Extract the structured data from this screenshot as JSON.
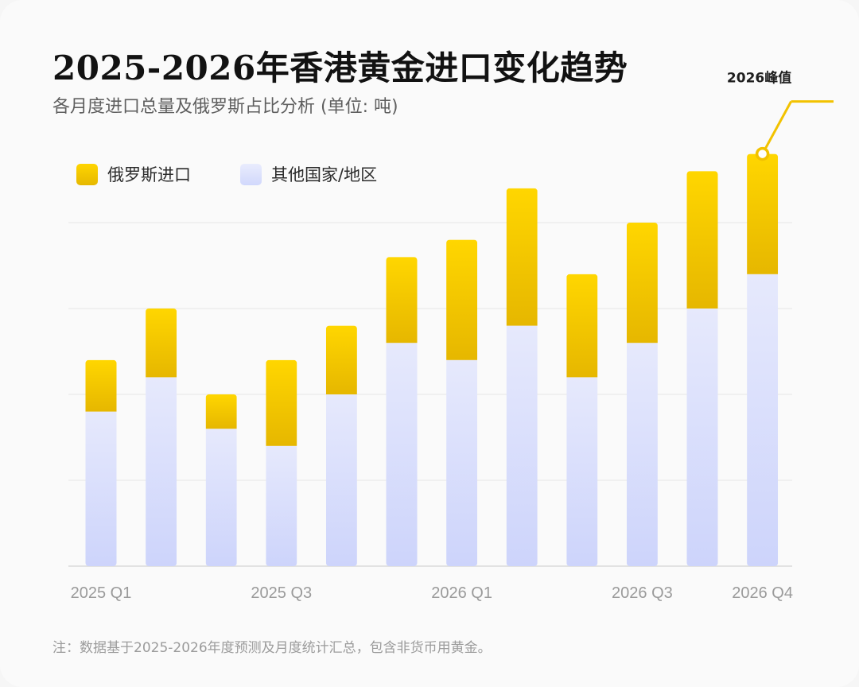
{
  "title": "2025-2026年香港黄金进口变化趋势",
  "subtitle": "各月度进口总量及俄罗斯占比分析 (单位: 吨)",
  "legend": {
    "russia": "俄罗斯进口",
    "other": "其他国家/地区"
  },
  "callout": "2026峰值",
  "footnote": "注：数据基于2025-2026年度预测及月度统计汇总，包含非货币用黄金。",
  "colors": {
    "russia": "#f5c800",
    "other": "#d9defc",
    "accent": "#f2c200"
  },
  "chart_data": {
    "type": "bar",
    "stacked": true,
    "categories": [
      "",
      "",
      "",
      "",
      "",
      "",
      "",
      "",
      "",
      "",
      "",
      ""
    ],
    "tick_labels": [
      {
        "index": 0,
        "label": "2025 Q1"
      },
      {
        "index": 3,
        "label": "2025 Q3"
      },
      {
        "index": 6,
        "label": "2026 Q1"
      },
      {
        "index": 9,
        "label": "2026 Q3"
      },
      {
        "index": 11,
        "label": "2026 Q4"
      }
    ],
    "series": [
      {
        "name": "其他国家/地区",
        "key": "other",
        "values": [
          18,
          22,
          16,
          14,
          20,
          26,
          24,
          28,
          22,
          26,
          30,
          34
        ]
      },
      {
        "name": "俄罗斯进口",
        "key": "russia",
        "values": [
          6,
          8,
          4,
          10,
          8,
          10,
          14,
          16,
          12,
          14,
          16,
          14
        ]
      }
    ],
    "ylim": [
      0,
      48
    ],
    "grid": true,
    "legend_position": "top-left",
    "annotation": {
      "index": 11,
      "text": "2026峰值"
    }
  }
}
